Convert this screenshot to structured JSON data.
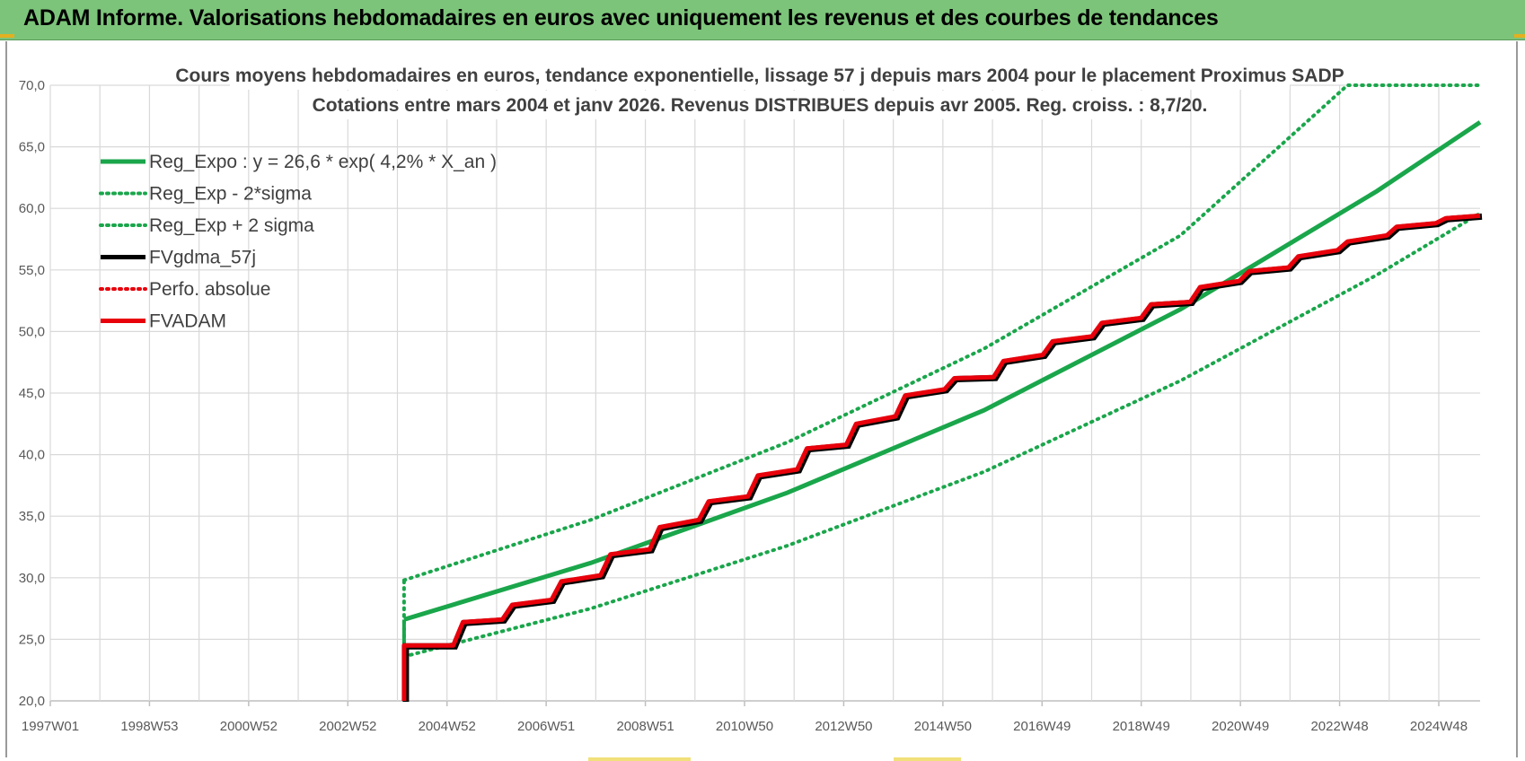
{
  "header": {
    "title": "ADAM Informe. Valorisations hebdomadaires en euros avec uniquement les revenus et des courbes de tendances"
  },
  "colors": {
    "header_bg": "#7cc47a",
    "green_trend": "#1aa64b",
    "red_fvadam": "#e8000b",
    "black_fvgdma": "#000000",
    "red_dotted": "#e8000b"
  },
  "chart_data": {
    "type": "line",
    "title_line1": "Cours moyens  hebdomadaires en euros, tendance exponentielle, lissage 57 j depuis mars 2004 pour le placement Proximus SADP",
    "title_line2": "Cotations entre mars 2004 et janv 2026. Revenus DISTRIBUES depuis avr 2005. Reg. croiss. : 8,7/20.",
    "x_tick_labels": [
      "1997W01",
      "1998W53",
      "2000W52",
      "2002W52",
      "2004W52",
      "2006W51",
      "2008W51",
      "2010W50",
      "2012W50",
      "2014W50",
      "2016W49",
      "2018W49",
      "2020W49",
      "2022W48",
      "2024W48"
    ],
    "x_range_years": [
      1997.0,
      2026.1
    ],
    "ylim": [
      20,
      70
    ],
    "y_ticks": [
      20,
      25,
      30,
      35,
      40,
      45,
      50,
      55,
      60,
      65,
      70
    ],
    "y_tick_labels": [
      "20,0",
      "25,0",
      "30,0",
      "35,0",
      "40,0",
      "45,0",
      "50,0",
      "55,0",
      "60,0",
      "65,0",
      "70,0"
    ],
    "grid": true,
    "legend_position": "top-left",
    "legend": [
      {
        "label": "Reg_Expo : y = 26,6 * exp( 4,2% *  X_an )",
        "color": "#1aa64b",
        "style": "solid"
      },
      {
        "label": "Reg_Exp - 2*sigma",
        "color": "#1aa64b",
        "style": "dotted"
      },
      {
        "label": "Reg_Exp + 2 sigma",
        "color": "#1aa64b",
        "style": "dotted"
      },
      {
        "label": "FVgdma_57j",
        "color": "#000000",
        "style": "solid"
      },
      {
        "label": "Perfo. absolue",
        "color": "#e8000b",
        "style": "dotted"
      },
      {
        "label": "FVADAM",
        "color": "#e8000b",
        "style": "solid"
      }
    ],
    "series": [
      {
        "name": "Reg_Expo : y = 26,6 * exp( 4,2% *  X_an )",
        "x": [
          2004.2,
          2008.0,
          2012.0,
          2016.0,
          2020.0,
          2024.0,
          2026.1
        ],
        "values": [
          26.6,
          31.2,
          36.9,
          43.6,
          51.8,
          61.4,
          67.0
        ]
      },
      {
        "name": "Reg_Exp - 2*sigma",
        "x": [
          2004.2,
          2008.0,
          2012.0,
          2016.0,
          2020.0,
          2024.0,
          2026.1
        ],
        "values": [
          23.6,
          27.5,
          32.6,
          38.6,
          46.0,
          54.6,
          59.6
        ]
      },
      {
        "name": "Reg_Exp + 2 sigma",
        "x": [
          2004.2,
          2008.0,
          2012.0,
          2016.0,
          2020.0,
          2023.4,
          2026.1
        ],
        "values": [
          29.8,
          34.7,
          41.0,
          48.6,
          57.8,
          70.0,
          70.0
        ]
      },
      {
        "name": "FVADAM",
        "x": [
          2004.2,
          2004.2,
          2005.2,
          2005.4,
          2006.2,
          2006.4,
          2007.2,
          2007.4,
          2008.2,
          2008.4,
          2009.2,
          2009.4,
          2010.2,
          2010.4,
          2011.2,
          2011.4,
          2012.2,
          2012.4,
          2013.2,
          2013.4,
          2014.2,
          2014.4,
          2015.2,
          2015.4,
          2016.2,
          2016.4,
          2017.2,
          2017.4,
          2018.2,
          2018.4,
          2019.2,
          2019.4,
          2020.2,
          2020.4,
          2021.2,
          2021.4,
          2022.2,
          2022.4,
          2023.2,
          2023.4,
          2024.2,
          2024.4,
          2025.2,
          2025.4,
          2026.1
        ],
        "values": [
          20.0,
          24.5,
          24.5,
          26.4,
          26.6,
          27.8,
          28.2,
          29.7,
          30.2,
          31.9,
          32.3,
          34.1,
          34.7,
          36.2,
          36.6,
          38.3,
          38.8,
          40.5,
          40.8,
          42.5,
          43.1,
          44.8,
          45.3,
          46.2,
          46.3,
          47.6,
          48.1,
          49.2,
          49.6,
          50.7,
          51.1,
          52.2,
          52.4,
          53.6,
          54.1,
          54.9,
          55.2,
          56.1,
          56.6,
          57.3,
          57.8,
          58.5,
          58.8,
          59.2,
          59.4
        ]
      }
    ]
  }
}
